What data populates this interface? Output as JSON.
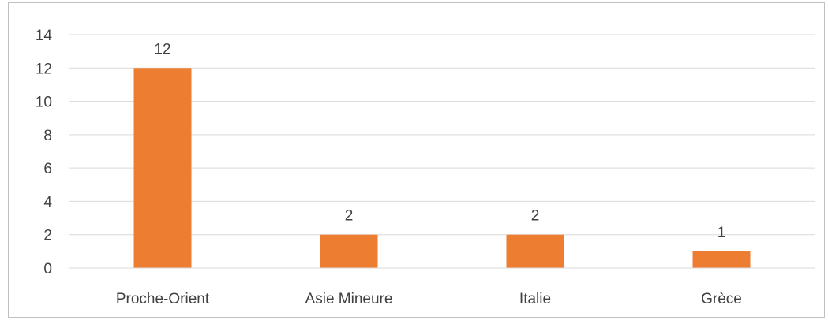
{
  "chart_data": {
    "type": "bar",
    "title": "",
    "xlabel": "",
    "ylabel": "",
    "categories": [
      "Proche-Orient",
      "Asie Mineure",
      "Italie",
      "Grèce"
    ],
    "values": [
      12,
      2,
      2,
      1
    ],
    "ylim": [
      0,
      14
    ],
    "yticks": [
      0,
      2,
      4,
      6,
      8,
      10,
      12,
      14
    ],
    "ytick_labels": [
      "0",
      "2",
      "4",
      "6",
      "8",
      "10",
      "12",
      "14"
    ],
    "data_labels": [
      "12",
      "2",
      "2",
      "1"
    ],
    "bar_color": "#ED7D31",
    "grid": true,
    "grid_color": "#d9d9d9",
    "legend": "none"
  }
}
